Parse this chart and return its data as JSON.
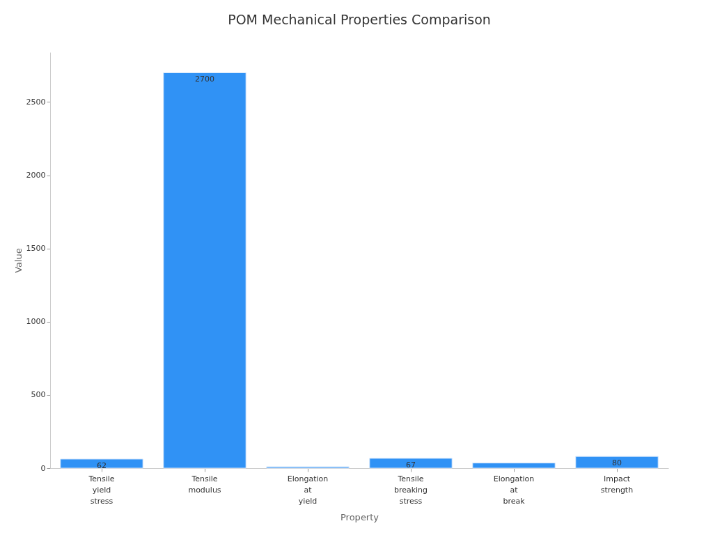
{
  "chart_data": {
    "type": "bar",
    "title": "POM Mechanical Properties Comparison",
    "xlabel": "Property",
    "ylabel": "Value",
    "categories": [
      "Tensile yield stress",
      "Tensile modulus",
      "Elongation at yield",
      "Tensile breaking stress",
      "Elongation at break",
      "Impact strength"
    ],
    "values": [
      62,
      2700,
      9,
      67,
      35,
      80
    ],
    "value_labels": [
      "62",
      "2700",
      null,
      "67",
      null,
      "80"
    ],
    "color": "#3092f5",
    "ylim": [
      0,
      2840
    ],
    "yticks": [
      0,
      500,
      1000,
      1500,
      2000,
      2500
    ],
    "grid": false
  }
}
